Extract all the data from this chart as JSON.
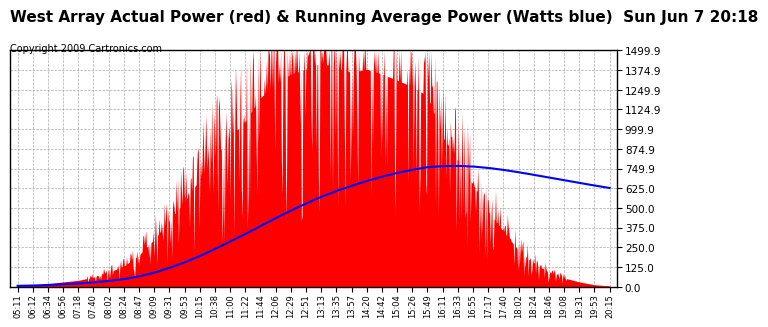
{
  "title": "West Array Actual Power (red) & Running Average Power (Watts blue)  Sun Jun 7 20:18",
  "copyright": "Copyright 2009 Cartronics.com",
  "yticks": [
    0.0,
    125.0,
    250.0,
    375.0,
    500.0,
    625.0,
    749.9,
    874.9,
    999.9,
    1124.9,
    1249.9,
    1374.9,
    1499.9
  ],
  "ylim": [
    0,
    1499.9
  ],
  "xtick_labels": [
    "05:11",
    "06:12",
    "06:34",
    "06:56",
    "07:18",
    "07:40",
    "08:02",
    "08:24",
    "08:47",
    "09:09",
    "09:31",
    "09:53",
    "10:15",
    "10:38",
    "11:00",
    "11:22",
    "11:44",
    "12:06",
    "12:29",
    "12:51",
    "13:13",
    "13:35",
    "13:57",
    "14:20",
    "14:42",
    "15:04",
    "15:26",
    "15:49",
    "16:11",
    "16:33",
    "16:55",
    "17:17",
    "17:40",
    "18:02",
    "18:24",
    "18:46",
    "19:08",
    "19:31",
    "19:53",
    "20:15"
  ],
  "fill_color": "#FF0000",
  "line_color": "#0000FF",
  "background_color": "#FFFFFF",
  "grid_color": "#888888",
  "title_fontsize": 11,
  "copyright_fontsize": 7,
  "actual_power": [
    5,
    8,
    18,
    30,
    40,
    60,
    90,
    130,
    200,
    300,
    420,
    540,
    680,
    820,
    950,
    1050,
    1200,
    1280,
    1350,
    1380,
    1420,
    1390,
    1360,
    1380,
    1350,
    1310,
    1270,
    1210,
    950,
    800,
    650,
    480,
    350,
    230,
    150,
    90,
    55,
    30,
    12,
    5
  ],
  "spike_seed": 42,
  "avg_scale": 1.0
}
